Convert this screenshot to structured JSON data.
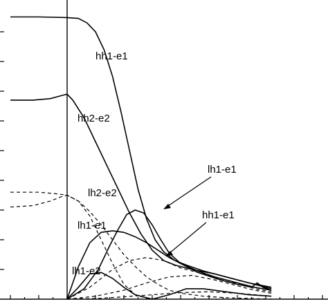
{
  "chart_data": {
    "type": "line",
    "title": "",
    "xlabel": "",
    "ylabel": "",
    "xlim": [
      -1,
      3.6
    ],
    "ylim": [
      0,
      1
    ],
    "grid": false,
    "reference_line_x": 0,
    "labels": {
      "hh1_e1_top": "hh1-e1",
      "hh2_e2": "hh2-e2",
      "lh1_e1_arrow": "lh1-e1",
      "lh2_e2": "lh2-e2",
      "lh1_e1": "lh1-e1",
      "hh1_e1_arrow": "hh1-e1",
      "lh1_e2": "lh1-e2"
    },
    "series": [
      {
        "label_key": "hh1_e1_top",
        "style": "solid",
        "points": [
          [
            -1.0,
            0.95
          ],
          [
            -0.5,
            0.95
          ],
          [
            0.0,
            0.948
          ],
          [
            0.2,
            0.945
          ],
          [
            0.35,
            0.93
          ],
          [
            0.5,
            0.9
          ],
          [
            0.65,
            0.84
          ],
          [
            0.8,
            0.75
          ],
          [
            0.95,
            0.63
          ],
          [
            1.1,
            0.5
          ],
          [
            1.25,
            0.37
          ],
          [
            1.4,
            0.27
          ],
          [
            1.55,
            0.2
          ],
          [
            1.7,
            0.16
          ],
          [
            1.9,
            0.13
          ],
          [
            2.1,
            0.115
          ],
          [
            2.4,
            0.095
          ],
          [
            2.8,
            0.075
          ],
          [
            3.2,
            0.055
          ],
          [
            3.6,
            0.04
          ]
        ]
      },
      {
        "label_key": "hh2_e2",
        "style": "solid",
        "points": [
          [
            -1.0,
            0.67
          ],
          [
            -0.6,
            0.67
          ],
          [
            -0.3,
            0.675
          ],
          [
            -0.1,
            0.685
          ],
          [
            0.0,
            0.69
          ],
          [
            0.1,
            0.67
          ],
          [
            0.3,
            0.61
          ],
          [
            0.5,
            0.53
          ],
          [
            0.7,
            0.45
          ],
          [
            0.9,
            0.37
          ],
          [
            1.1,
            0.29
          ],
          [
            1.3,
            0.22
          ],
          [
            1.5,
            0.165
          ],
          [
            1.7,
            0.13
          ],
          [
            1.9,
            0.115
          ],
          [
            2.2,
            0.1
          ],
          [
            2.6,
            0.085
          ],
          [
            3.0,
            0.065
          ],
          [
            3.3,
            0.05
          ],
          [
            3.6,
            0.035
          ]
        ]
      },
      {
        "label_key": "lh1_e1_arrow",
        "style": "solid",
        "points": [
          [
            0.0,
            0.0
          ],
          [
            0.3,
            0.035
          ],
          [
            0.55,
            0.1
          ],
          [
            0.75,
            0.18
          ],
          [
            0.9,
            0.235
          ],
          [
            1.05,
            0.285
          ],
          [
            1.2,
            0.3
          ],
          [
            1.35,
            0.29
          ],
          [
            1.5,
            0.25
          ],
          [
            1.65,
            0.2
          ],
          [
            1.8,
            0.155
          ],
          [
            2.0,
            0.12
          ],
          [
            2.3,
            0.09
          ],
          [
            2.7,
            0.065
          ],
          [
            3.0,
            0.05
          ],
          [
            3.25,
            0.04
          ],
          [
            3.35,
            0.055
          ],
          [
            3.45,
            0.04
          ],
          [
            3.6,
            0.03
          ]
        ]
      },
      {
        "label_key": "lh1_e1",
        "style": "solid",
        "points": [
          [
            0.0,
            0.0
          ],
          [
            0.2,
            0.11
          ],
          [
            0.4,
            0.19
          ],
          [
            0.6,
            0.225
          ],
          [
            0.8,
            0.23
          ],
          [
            1.0,
            0.225
          ],
          [
            1.2,
            0.21
          ],
          [
            1.4,
            0.19
          ],
          [
            1.6,
            0.165
          ],
          [
            1.8,
            0.14
          ],
          [
            2.0,
            0.12
          ],
          [
            2.3,
            0.095
          ],
          [
            2.6,
            0.075
          ],
          [
            3.0,
            0.055
          ],
          [
            3.3,
            0.04
          ],
          [
            3.6,
            0.03
          ]
        ]
      },
      {
        "label_key": "lh2_e2",
        "style": "dashed",
        "points": [
          [
            -1.0,
            0.36
          ],
          [
            -0.5,
            0.36
          ],
          [
            -0.2,
            0.355
          ],
          [
            0.0,
            0.35
          ],
          [
            0.2,
            0.33
          ],
          [
            0.4,
            0.295
          ],
          [
            0.6,
            0.25
          ],
          [
            0.8,
            0.2
          ],
          [
            1.0,
            0.15
          ],
          [
            1.2,
            0.11
          ],
          [
            1.4,
            0.075
          ],
          [
            1.6,
            0.05
          ],
          [
            1.8,
            0.03
          ],
          [
            2.0,
            0.02
          ],
          [
            2.4,
            0.01
          ],
          [
            2.8,
            0.005
          ],
          [
            3.6,
            0.0
          ]
        ]
      },
      {
        "label_key": "",
        "style": "dashed",
        "points": [
          [
            -1.0,
            0.31
          ],
          [
            -0.6,
            0.315
          ],
          [
            -0.3,
            0.33
          ],
          [
            -0.1,
            0.345
          ],
          [
            0.0,
            0.35
          ],
          [
            0.2,
            0.33
          ],
          [
            0.4,
            0.28
          ],
          [
            0.6,
            0.2
          ],
          [
            0.8,
            0.12
          ],
          [
            1.0,
            0.05
          ],
          [
            1.2,
            0.015
          ],
          [
            1.4,
            0.003
          ],
          [
            1.6,
            0.0
          ]
        ]
      },
      {
        "label_key": "hh1_e1_arrow",
        "style": "dashed",
        "points": [
          [
            0.0,
            0.0
          ],
          [
            0.4,
            0.04
          ],
          [
            0.8,
            0.1
          ],
          [
            1.1,
            0.13
          ],
          [
            1.4,
            0.14
          ],
          [
            1.7,
            0.13
          ],
          [
            2.0,
            0.105
          ],
          [
            2.4,
            0.085
          ],
          [
            2.8,
            0.06
          ],
          [
            3.1,
            0.05
          ],
          [
            3.3,
            0.035
          ],
          [
            3.6,
            0.025
          ]
        ]
      },
      {
        "label_key": "",
        "style": "dashed",
        "points": [
          [
            0.0,
            0.0
          ],
          [
            0.5,
            0.01
          ],
          [
            1.0,
            0.03
          ],
          [
            1.4,
            0.055
          ],
          [
            1.8,
            0.075
          ],
          [
            2.2,
            0.08
          ],
          [
            2.6,
            0.065
          ],
          [
            3.0,
            0.045
          ],
          [
            3.3,
            0.03
          ],
          [
            3.6,
            0.02
          ]
        ]
      },
      {
        "label_key": "lh1_e2",
        "style": "solid",
        "points": [
          [
            0.0,
            0.0
          ],
          [
            0.2,
            0.04
          ],
          [
            0.4,
            0.085
          ],
          [
            0.6,
            0.09
          ],
          [
            0.8,
            0.07
          ],
          [
            1.0,
            0.04
          ],
          [
            1.2,
            0.015
          ],
          [
            1.5,
            0.0
          ],
          [
            1.8,
            0.015
          ],
          [
            2.1,
            0.035
          ],
          [
            2.4,
            0.035
          ],
          [
            2.8,
            0.025
          ],
          [
            3.2,
            0.015
          ],
          [
            3.6,
            0.01
          ]
        ]
      },
      {
        "label_key": "",
        "style": "dashed",
        "points": [
          [
            0.0,
            0.0
          ],
          [
            0.5,
            0.002
          ],
          [
            1.0,
            0.008
          ],
          [
            1.5,
            0.015
          ],
          [
            2.0,
            0.022
          ],
          [
            2.5,
            0.025
          ],
          [
            3.0,
            0.02
          ],
          [
            3.3,
            0.015
          ],
          [
            3.6,
            0.01
          ]
        ]
      }
    ]
  }
}
